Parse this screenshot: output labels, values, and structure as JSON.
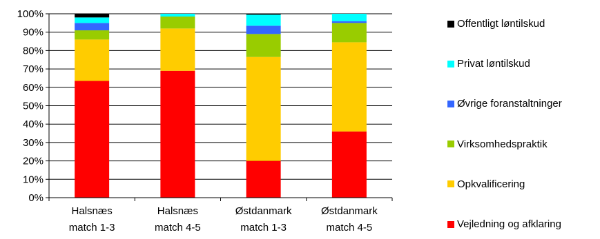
{
  "chart_data": {
    "type": "bar",
    "stacked": true,
    "categories": [
      [
        "Halsnæs",
        "match 1-3"
      ],
      [
        "Halsnæs",
        "match 4-5"
      ],
      [
        "Østdanmark",
        "match 1-3"
      ],
      [
        "Østdanmark",
        "match 4-5"
      ]
    ],
    "ylim": [
      0,
      100
    ],
    "yticks": [
      "0%",
      "10%",
      "20%",
      "30%",
      "40%",
      "50%",
      "60%",
      "70%",
      "80%",
      "90%",
      "100%"
    ],
    "grid": true,
    "legend_position": "right",
    "series": [
      {
        "name": "Vejledning og afklaring",
        "color": "#ff0000",
        "values": [
          63.5,
          69.0,
          20.0,
          36.0
        ]
      },
      {
        "name": "Opkvalificering",
        "color": "#ffcc00",
        "values": [
          22.5,
          23.0,
          56.5,
          48.5
        ]
      },
      {
        "name": "Virksomhedspraktik",
        "color": "#99cc00",
        "values": [
          5.0,
          6.5,
          12.5,
          10.5
        ]
      },
      {
        "name": "Øvrige foranstaltninger",
        "color": "#3366ff",
        "values": [
          4.0,
          0.0,
          4.5,
          1.0
        ]
      },
      {
        "name": "Privat løntilskud",
        "color": "#00ffff",
        "values": [
          3.0,
          1.5,
          6.0,
          4.0
        ]
      },
      {
        "name": "Offentligt løntilskud",
        "color": "#000000",
        "values": [
          2.0,
          0.0,
          0.5,
          0.0
        ]
      }
    ]
  }
}
